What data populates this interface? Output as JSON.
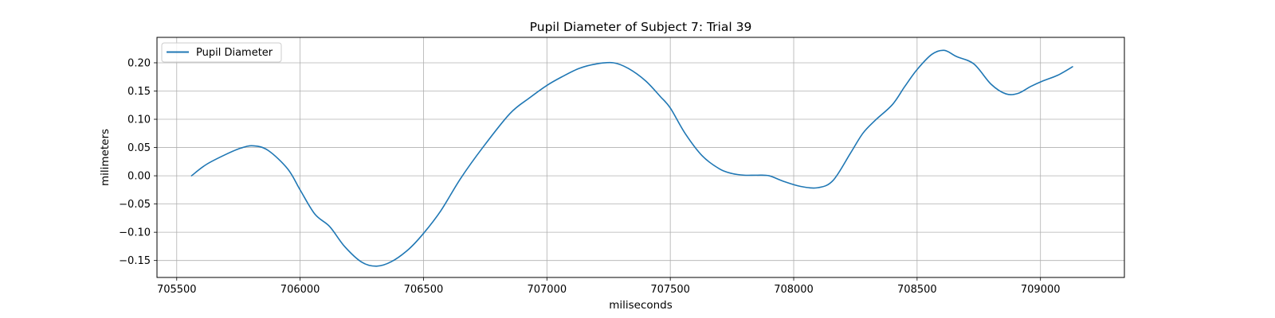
{
  "chart_data": {
    "type": "line",
    "title": "Pupil Diameter of Subject 7: Trial 39",
    "xlabel": "miliseconds",
    "ylabel": "milimeters",
    "xlim": [
      705420,
      709340
    ],
    "ylim": [
      -0.18,
      0.245
    ],
    "xticks": [
      705500,
      706000,
      706500,
      707000,
      707500,
      708000,
      708500,
      709000
    ],
    "xtick_labels": [
      "705500",
      "706000",
      "706500",
      "707000",
      "707500",
      "708000",
      "708500",
      "709000"
    ],
    "yticks": [
      -0.15,
      -0.1,
      -0.05,
      0.0,
      0.05,
      0.1,
      0.15,
      0.2
    ],
    "ytick_labels": [
      "−0.15",
      "−0.10",
      "−0.05",
      "0.00",
      "0.05",
      "0.10",
      "0.15",
      "0.20"
    ],
    "grid": true,
    "legend_position": "top-left",
    "series": [
      {
        "name": "Pupil Diameter",
        "color": "#1f77b4",
        "x": [
          705560,
          705620,
          705700,
          705760,
          705810,
          705870,
          705950,
          706000,
          706060,
          706120,
          706180,
          706250,
          706310,
          706370,
          706440,
          706500,
          706570,
          706650,
          706740,
          706850,
          706930,
          707000,
          707060,
          707130,
          707200,
          707270,
          707330,
          707400,
          707460,
          707500,
          707560,
          707630,
          707700,
          707750,
          707800,
          707850,
          707900,
          707960,
          708030,
          708100,
          708160,
          708230,
          708280,
          708330,
          708400,
          708450,
          708500,
          708560,
          708610,
          708660,
          708730,
          708800,
          708860,
          708910,
          708960,
          709010,
          709070,
          709130
        ],
        "values": [
          0.0,
          0.02,
          0.038,
          0.049,
          0.053,
          0.045,
          0.012,
          -0.025,
          -0.068,
          -0.09,
          -0.125,
          -0.153,
          -0.16,
          -0.152,
          -0.13,
          -0.102,
          -0.062,
          -0.005,
          0.05,
          0.11,
          0.138,
          0.16,
          0.175,
          0.19,
          0.198,
          0.2,
          0.19,
          0.168,
          0.14,
          0.12,
          0.075,
          0.035,
          0.012,
          0.004,
          0.001,
          0.001,
          0.0,
          -0.01,
          -0.019,
          -0.021,
          -0.008,
          0.04,
          0.075,
          0.098,
          0.126,
          0.158,
          0.188,
          0.215,
          0.222,
          0.211,
          0.198,
          0.162,
          0.145,
          0.146,
          0.158,
          0.168,
          0.178,
          0.193
        ]
      }
    ]
  }
}
